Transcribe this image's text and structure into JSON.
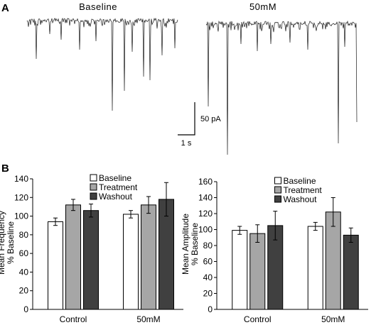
{
  "panel_a": {
    "letter": "A",
    "traces": [
      {
        "title": "Baseline"
      },
      {
        "title": "50mM"
      }
    ],
    "scale_bar": {
      "y_label": "50 pA",
      "x_label": "1 s"
    }
  },
  "panel_b": {
    "letter": "B"
  },
  "chart_data": [
    {
      "type": "bar",
      "ylabel": "Mean Frequency\n% Baseline",
      "ylim": [
        0,
        140
      ],
      "yticks": [
        0,
        20,
        40,
        60,
        80,
        100,
        120,
        140
      ],
      "categories": [
        "Control",
        "50mM"
      ],
      "series": [
        {
          "name": "Baseline",
          "color": "#ffffff",
          "values": [
            94,
            102
          ],
          "errors": [
            4,
            4
          ]
        },
        {
          "name": "Treatment",
          "color": "#a6a6a6",
          "values": [
            112,
            112
          ],
          "errors": [
            6,
            9
          ]
        },
        {
          "name": "Washout",
          "color": "#404040",
          "values": [
            106,
            118
          ],
          "errors": [
            7,
            18
          ]
        }
      ],
      "legend": "top-center",
      "grid": false
    },
    {
      "type": "bar",
      "ylabel": "Mean Amplitude\n% Baseline",
      "ylim": [
        0,
        160
      ],
      "yticks": [
        0,
        20,
        40,
        60,
        80,
        100,
        120,
        140,
        160
      ],
      "categories": [
        "Control",
        "50mM"
      ],
      "series": [
        {
          "name": "Baseline",
          "color": "#ffffff",
          "values": [
            99,
            104
          ],
          "errors": [
            5,
            5
          ]
        },
        {
          "name": "Treatment",
          "color": "#a6a6a6",
          "values": [
            95,
            122
          ],
          "errors": [
            11,
            18
          ]
        },
        {
          "name": "Washout",
          "color": "#404040",
          "values": [
            105,
            93
          ],
          "errors": [
            18,
            9
          ]
        }
      ],
      "legend": "top-center",
      "grid": false
    }
  ]
}
